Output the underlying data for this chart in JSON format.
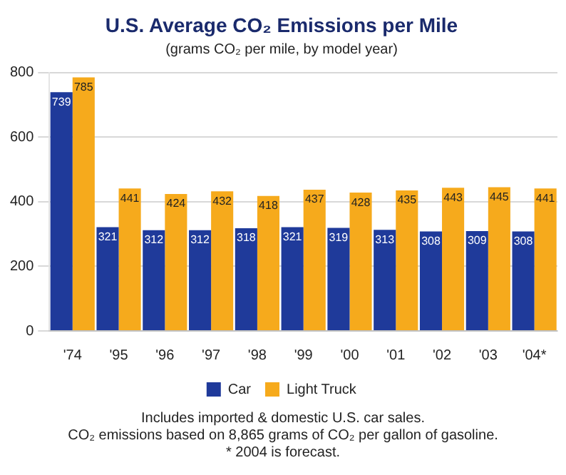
{
  "chart_data": {
    "type": "bar",
    "title": "U.S. Average CO₂ Emissions per Mile",
    "subtitle": "(grams CO₂ per mile, by model year)",
    "categories": [
      "'74",
      "'95",
      "'96",
      "'97",
      "'98",
      "'99",
      "'00",
      "'01",
      "'02",
      "'03",
      "'04*"
    ],
    "series": [
      {
        "name": "Car",
        "color": "#1f3a9a",
        "values": [
          739,
          321,
          312,
          312,
          318,
          321,
          319,
          313,
          308,
          309,
          308
        ]
      },
      {
        "name": "Light Truck",
        "color": "#f6aa1c",
        "values": [
          785,
          441,
          424,
          432,
          418,
          437,
          428,
          435,
          443,
          445,
          441
        ]
      }
    ],
    "ylim": [
      0,
      800
    ],
    "yticks": [
      0,
      200,
      400,
      600,
      800
    ],
    "grid": "y",
    "legend": "bottom",
    "data_labels": true,
    "annotations": [
      "Includes imported & domestic U.S. car sales.",
      "CO₂ emissions based on 8,865 grams of CO₂ per gallon of gasoline.",
      "* 2004 is forecast."
    ]
  }
}
